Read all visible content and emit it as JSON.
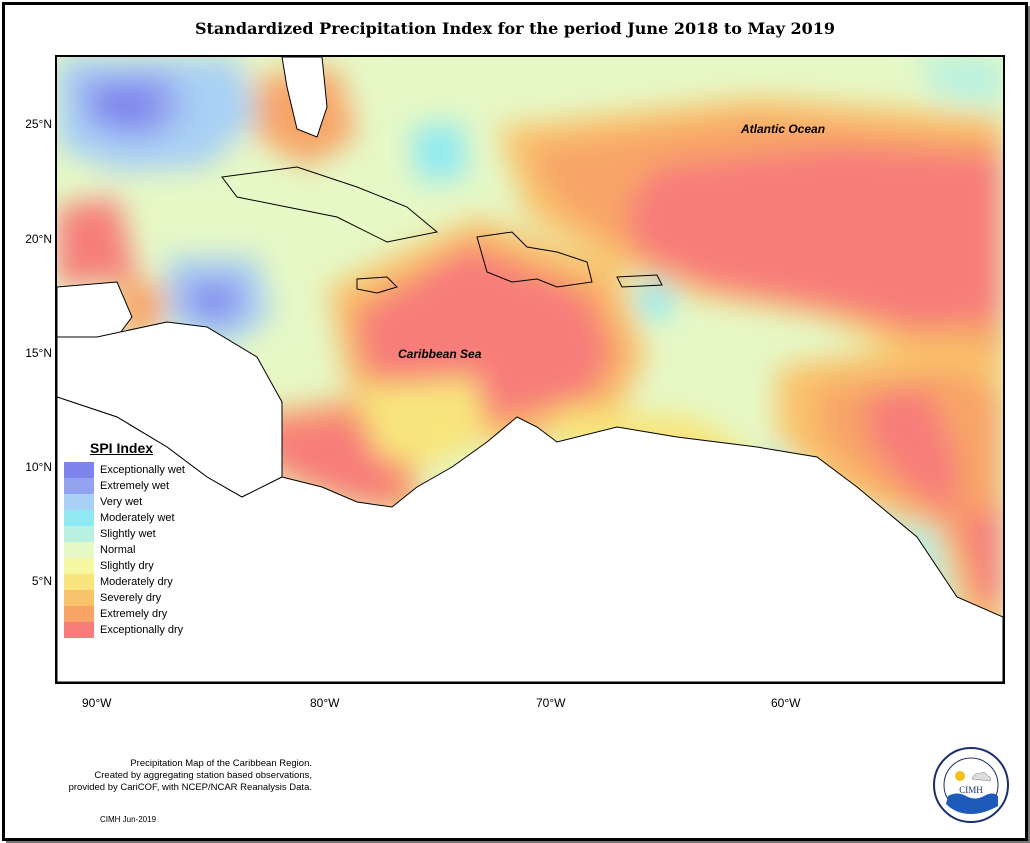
{
  "title": "Standardized Precipitation Index for the period June 2018 to May 2019",
  "map": {
    "y_ticks": [
      "25°N",
      "20°N",
      "15°N",
      "10°N",
      "5°N"
    ],
    "x_ticks": [
      "90°W",
      "80°W",
      "70°W",
      "60°W"
    ],
    "region_labels": {
      "atlantic": "Atlantic Ocean",
      "caribbean": "Caribbean Sea"
    }
  },
  "legend": {
    "title": "SPI Index",
    "items": [
      {
        "label": "Exceptionally wet",
        "color": "#7d82ec"
      },
      {
        "label": "Extremely wet",
        "color": "#94a3f0"
      },
      {
        "label": "Very wet",
        "color": "#a9d0f5"
      },
      {
        "label": "Moderately wet",
        "color": "#8ee9f2"
      },
      {
        "label": "Slightly wet",
        "color": "#b9f1e0"
      },
      {
        "label": "Normal",
        "color": "#e6f8c6"
      },
      {
        "label": "Slightly dry",
        "color": "#f6f7a2"
      },
      {
        "label": "Moderately dry",
        "color": "#f8e57d"
      },
      {
        "label": "Severely dry",
        "color": "#f9c36c"
      },
      {
        "label": "Extremely dry",
        "color": "#f8a467"
      },
      {
        "label": "Exceptionally dry",
        "color": "#f77d7a"
      }
    ]
  },
  "credits": {
    "line1": "Precipitation Map of the Caribbean Region.",
    "line2": "Created by aggregating station based observations,",
    "line3": "provided by CariCOF, with NCEP/NCAR Reanalysis Data.",
    "stamp": "CIMH Jun-2019"
  },
  "logo": {
    "name": "CIMH"
  }
}
